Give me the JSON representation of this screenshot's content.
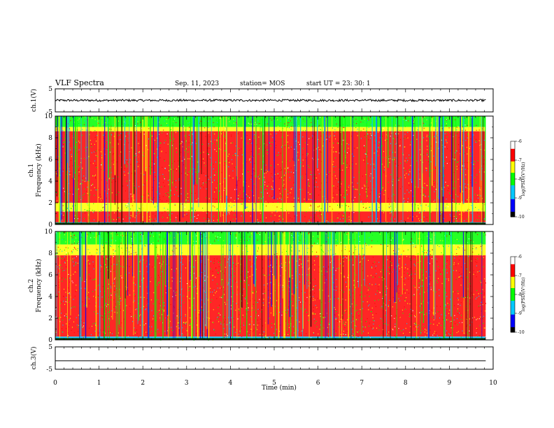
{
  "header": {
    "title": "VLF  Spectra",
    "date": "Sep. 11, 2023",
    "station": "station= MOS",
    "start_ut": "start  UT  =   23: 30: 1"
  },
  "chart_data": [
    {
      "type": "line",
      "name": "ch1-waveform",
      "ylabel": "ch.1(V)",
      "ylim": [
        -5,
        5
      ],
      "y_tick_labels": [
        "5",
        "-5"
      ],
      "x_range_min": [
        0,
        9.83
      ],
      "series": [
        {
          "noise_amplitude_V": 0.45,
          "level_V": 0.0
        }
      ]
    },
    {
      "type": "heatmap",
      "name": "ch1-spectrogram",
      "ylabel": "ch.1\nFrequency (kHz)",
      "ylim": [
        0,
        10
      ],
      "y_tick_labels": [
        "0",
        "2",
        "4",
        "6",
        "8",
        "10"
      ],
      "x_range_min": [
        0,
        9.83
      ],
      "bands_kHz": [
        {
          "from": 9.0,
          "to": 10.0,
          "log_psd": -8.1
        },
        {
          "from": 8.6,
          "to": 9.0,
          "log_psd": -7.2
        },
        {
          "from": 2.0,
          "to": 8.6,
          "log_psd": -6.4
        },
        {
          "from": 1.2,
          "to": 2.0,
          "log_psd": -7.1
        },
        {
          "from": 0.2,
          "to": 1.2,
          "log_psd": -6.6
        },
        {
          "from": 0.0,
          "to": 0.2,
          "log_psd": -8.9
        }
      ],
      "colorbar": {
        "label": "log(PSD)(V²/Hz)",
        "ticks": [
          "-6",
          "-7",
          "-8",
          "-9",
          "-10"
        ],
        "range": [
          -10,
          -6
        ]
      }
    },
    {
      "type": "heatmap",
      "name": "ch2-spectrogram",
      "ylabel": "ch.2\nFrequency (kHz)",
      "ylim": [
        0,
        10
      ],
      "y_tick_labels": [
        "0",
        "2",
        "4",
        "6",
        "8",
        "10"
      ],
      "x_range_min": [
        0,
        9.83
      ],
      "bands_kHz": [
        {
          "from": 8.8,
          "to": 10.0,
          "log_psd": -8.0
        },
        {
          "from": 7.8,
          "to": 8.8,
          "log_psd": -7.1
        },
        {
          "from": 2.0,
          "to": 7.8,
          "log_psd": -6.4
        },
        {
          "from": 0.3,
          "to": 2.0,
          "log_psd": -7.0
        },
        {
          "from": 0.0,
          "to": 0.3,
          "log_psd": -8.8
        }
      ],
      "colorbar": {
        "label": "log(PSD)(V²/Hz)",
        "ticks": [
          "-6",
          "-7",
          "-8",
          "-9",
          "-10"
        ],
        "range": [
          -10,
          -6
        ]
      }
    },
    {
      "type": "line",
      "name": "ch3-waveform",
      "ylabel": "ch.3(V)",
      "ylim": [
        -5,
        5
      ],
      "y_tick_labels": [
        "5",
        "-5"
      ],
      "x_range_min": [
        0,
        9.83
      ],
      "series": [
        {
          "noise_amplitude_V": 0.0,
          "level_V": -1.2
        }
      ]
    }
  ],
  "x_axis": {
    "label": "Time  (min)",
    "range": [
      0,
      10
    ],
    "tick_labels": [
      "0",
      "1",
      "2",
      "3",
      "4",
      "5",
      "6",
      "7",
      "8",
      "9",
      "10"
    ]
  },
  "colors": {
    "colormap": [
      "#000000",
      "#0000ff",
      "#00c8ff",
      "#00ff00",
      "#ffff00",
      "#ff0000",
      "#ffffff"
    ],
    "trace": "#000000"
  }
}
